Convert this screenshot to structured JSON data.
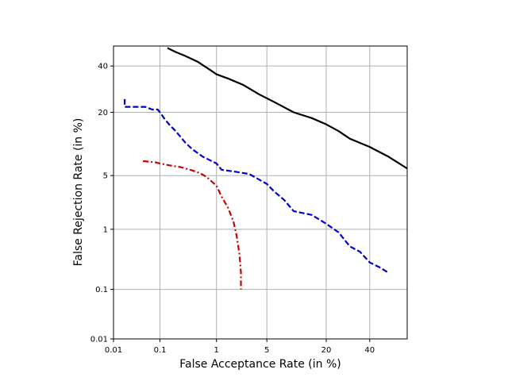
{
  "chart_data": {
    "type": "line",
    "title": "",
    "xlabel": "False Acceptance Rate (in %)",
    "ylabel": "False Rejection Rate (in %)",
    "xscale": "normal-deviate",
    "yscale": "normal-deviate",
    "xlim": [
      0.01,
      60
    ],
    "ylim": [
      0.01,
      50
    ],
    "xticks": [
      0.01,
      0.1,
      1,
      5,
      20,
      40
    ],
    "xtick_labels": [
      "0.01",
      "0.1",
      "1",
      "5",
      "20",
      "40"
    ],
    "yticks": [
      0.01,
      0.1,
      1,
      5,
      20,
      40
    ],
    "ytick_labels": [
      "0.01",
      "0.1",
      "1",
      "5",
      "20",
      "40"
    ],
    "grid": true,
    "legend": false,
    "series": [
      {
        "color": "#000000",
        "style": "solid",
        "x": [
          0.14,
          0.2,
          0.3,
          0.5,
          0.8,
          1.0,
          1.5,
          2.5,
          4,
          6,
          10,
          15,
          20,
          25,
          30,
          40,
          50,
          60
        ],
        "y": [
          49,
          47,
          45,
          42,
          38,
          36,
          34,
          31,
          27,
          24,
          20,
          18,
          16,
          14,
          12,
          10,
          8,
          6
        ]
      },
      {
        "color": "#0000cc",
        "style": "dashed",
        "x": [
          0.018,
          0.018,
          0.03,
          0.05,
          0.07,
          0.09,
          0.1,
          0.12,
          0.15,
          0.2,
          0.3,
          0.4,
          0.6,
          1.0,
          1.2,
          2.0,
          3.0,
          4.0,
          5.0,
          6.0,
          8.0,
          10,
          15,
          20,
          25,
          30,
          35,
          40,
          45,
          50
        ],
        "y": [
          25,
          22,
          22,
          22,
          21,
          21,
          20,
          18,
          16,
          14,
          11,
          9.5,
          8,
          6.8,
          5.8,
          5.5,
          5.2,
          4.5,
          4.0,
          3.3,
          2.5,
          1.8,
          1.6,
          1.2,
          0.9,
          0.55,
          0.45,
          0.3,
          0.25,
          0.2
        ]
      },
      {
        "color": "#cc0000",
        "style": "dashdot",
        "x": [
          0.045,
          0.08,
          0.1,
          0.15,
          0.25,
          0.4,
          0.55,
          0.7,
          1.0,
          1.2,
          1.5,
          1.8,
          2.0,
          2.2,
          2.3,
          2.3
        ],
        "y": [
          7.2,
          7.0,
          6.8,
          6.5,
          6.2,
          5.7,
          5.3,
          4.8,
          3.8,
          2.8,
          2.0,
          1.3,
          0.8,
          0.4,
          0.2,
          0.1
        ]
      }
    ]
  }
}
